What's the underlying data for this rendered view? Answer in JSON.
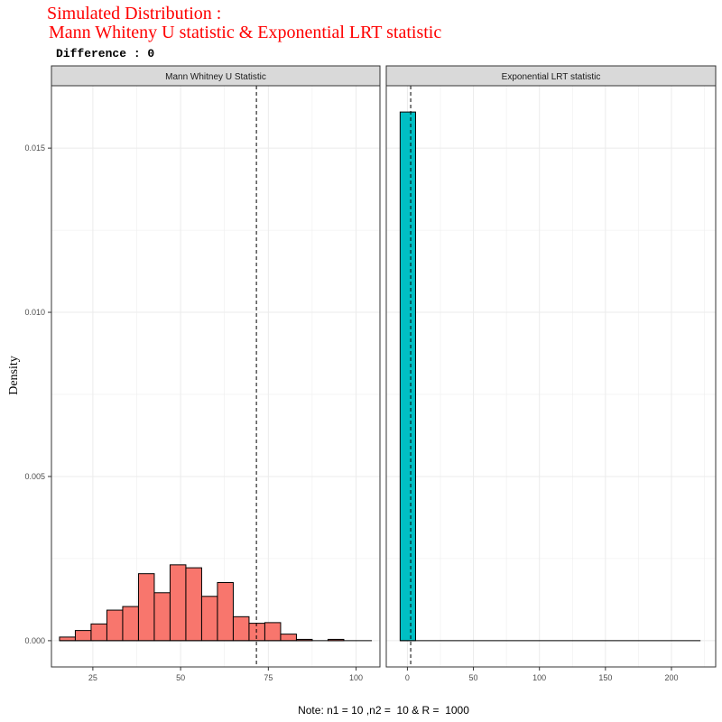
{
  "title_line1": "Simulated Distribution :",
  "title_line2": "Mann Whiteny U statistic & Exponential LRT statistic",
  "subtitle": "Difference : 0",
  "caption": "Note: n1 = 10 ,n2 =  10 & R =  1000",
  "colors": {
    "title": "#ff0000",
    "mw_fill": "#f8766d",
    "exp_fill": "#00bfc4",
    "strip_bg": "#d9d9d9",
    "grid": "#ebebeb"
  },
  "chart_data": {
    "type": "histogram",
    "y_axis": {
      "label": "Density",
      "lim": [
        -0.0008,
        0.0169
      ],
      "breaks": [
        0.0,
        0.005,
        0.01,
        0.015
      ],
      "tick_labels": [
        "0.000",
        "0.005",
        "0.010",
        "0.015"
      ]
    },
    "panels": [
      {
        "name": "Mann Whitney U Statistic",
        "fill": "#f8766d",
        "xlim": [
          13.2,
          106.8
        ],
        "x_breaks": [
          25,
          50,
          75,
          100
        ],
        "x_tick_labels": [
          "25",
          "50",
          "75",
          "100"
        ],
        "vline": 71.6,
        "baseline": [
          15.5,
          104.5
        ],
        "bin_edges": [
          15.5,
          20.0,
          24.5,
          29.0,
          33.5,
          38.0,
          42.5,
          47.0,
          51.5,
          56.0,
          60.5,
          65.0,
          69.5,
          74.0,
          78.5,
          83.0,
          87.5,
          92.0,
          96.5
        ],
        "density": [
          0.00011,
          0.00031,
          0.00051,
          0.00093,
          0.00104,
          0.00204,
          0.00146,
          0.00231,
          0.00222,
          0.00135,
          0.00177,
          0.00073,
          0.00053,
          0.00055,
          0.0002,
          4e-05,
          0.0,
          4e-05
        ]
      },
      {
        "name": "Exponential LRT statistic",
        "fill": "#00bfc4",
        "xlim": [
          -16.0,
          233.5
        ],
        "x_breaks": [
          0,
          50,
          100,
          150,
          200
        ],
        "x_tick_labels": [
          "0",
          "50",
          "100",
          "150",
          "200"
        ],
        "vline": 2.5,
        "baseline": [
          -5.5,
          222.0
        ],
        "bin_edges": [
          -5.5,
          6.2
        ],
        "density": [
          0.0161
        ]
      }
    ]
  }
}
